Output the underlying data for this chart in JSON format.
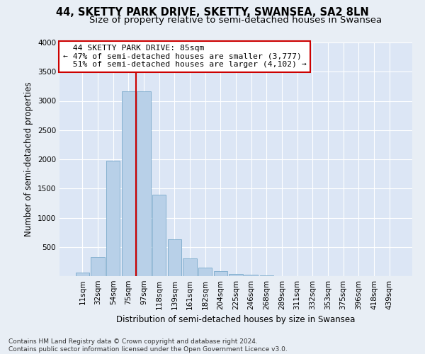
{
  "title": "44, SKETTY PARK DRIVE, SKETTY, SWANSEA, SA2 8LN",
  "subtitle": "Size of property relative to semi-detached houses in Swansea",
  "xlabel": "Distribution of semi-detached houses by size in Swansea",
  "ylabel": "Number of semi-detached properties",
  "footnote": "Contains HM Land Registry data © Crown copyright and database right 2024.\nContains public sector information licensed under the Open Government Licence v3.0.",
  "bar_labels": [
    "11sqm",
    "32sqm",
    "54sqm",
    "75sqm",
    "97sqm",
    "118sqm",
    "139sqm",
    "161sqm",
    "182sqm",
    "204sqm",
    "225sqm",
    "246sqm",
    "268sqm",
    "289sqm",
    "311sqm",
    "332sqm",
    "353sqm",
    "375sqm",
    "396sqm",
    "418sqm",
    "439sqm"
  ],
  "bar_values": [
    55,
    330,
    1970,
    3160,
    3160,
    1390,
    630,
    300,
    140,
    80,
    40,
    20,
    8,
    4,
    2,
    1,
    1,
    1,
    1,
    1,
    1
  ],
  "bar_color": "#b8d0e8",
  "bar_edge_color": "#7aaacb",
  "property_size_label": "44 SKETTY PARK DRIVE: 85sqm",
  "pct_smaller": 47,
  "count_smaller": 3777,
  "pct_larger": 51,
  "count_larger": 4102,
  "vline_color": "#cc0000",
  "vline_x": 3.5,
  "annotation_box_color": "#cc0000",
  "ylim": [
    0,
    4000
  ],
  "yticks": [
    0,
    500,
    1000,
    1500,
    2000,
    2500,
    3000,
    3500,
    4000
  ],
  "background_color": "#e8eef5",
  "plot_background": "#dce6f5",
  "grid_color": "#ffffff",
  "title_fontsize": 10.5,
  "subtitle_fontsize": 9.5,
  "axis_label_fontsize": 8.5,
  "tick_fontsize": 7.5,
  "footnote_fontsize": 6.5
}
